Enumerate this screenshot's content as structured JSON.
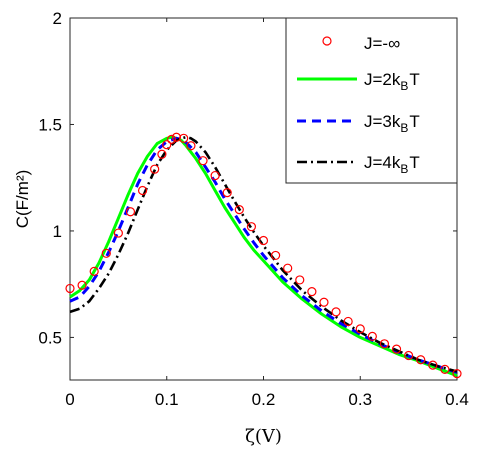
{
  "chart_data": {
    "type": "line",
    "xlabel": "ζ(V)",
    "ylabel": "C(F/m²)",
    "xlim": [
      0,
      0.4
    ],
    "ylim": [
      0.3,
      2.0
    ],
    "xticks": [
      0,
      0.1,
      0.2,
      0.3,
      0.4
    ],
    "xtick_labels": [
      "0",
      "0.1",
      "0.2",
      "0.3",
      "0.4"
    ],
    "yticks": [
      0.5,
      1.0,
      1.5,
      2.0
    ],
    "ytick_labels": [
      "0.5",
      "1",
      "1.5",
      "2"
    ],
    "grid": false,
    "legend_position": "top-right",
    "series": [
      {
        "name": "J=-∞",
        "style": "markers",
        "marker": "circle",
        "color": "#ff0000",
        "x": [
          0,
          0.0125,
          0.025,
          0.0375,
          0.05,
          0.0625,
          0.075,
          0.0875,
          0.095,
          0.1,
          0.105,
          0.11,
          0.1175,
          0.125,
          0.1375,
          0.15,
          0.1625,
          0.175,
          0.1875,
          0.2,
          0.2125,
          0.225,
          0.2375,
          0.25,
          0.2625,
          0.275,
          0.2875,
          0.3,
          0.3125,
          0.325,
          0.3375,
          0.35,
          0.3625,
          0.375,
          0.3875,
          0.4
        ],
        "y": [
          0.73,
          0.745,
          0.81,
          0.895,
          0.99,
          1.09,
          1.19,
          1.29,
          1.36,
          1.405,
          1.43,
          1.44,
          1.435,
          1.4,
          1.33,
          1.26,
          1.18,
          1.1,
          1.02,
          0.955,
          0.885,
          0.825,
          0.77,
          0.715,
          0.665,
          0.62,
          0.575,
          0.54,
          0.505,
          0.47,
          0.445,
          0.415,
          0.395,
          0.37,
          0.35,
          0.33
        ]
      },
      {
        "name": "J=2kBT",
        "label_main": "J=2k",
        "label_sub": "B",
        "label_tail": "T",
        "style": "solid",
        "color": "#00ff00",
        "x": [
          0,
          0.01,
          0.02,
          0.03,
          0.04,
          0.05,
          0.06,
          0.07,
          0.08,
          0.09,
          0.1,
          0.105,
          0.11,
          0.115,
          0.12,
          0.13,
          0.14,
          0.15,
          0.16,
          0.17,
          0.18,
          0.19,
          0.2,
          0.22,
          0.24,
          0.26,
          0.28,
          0.3,
          0.32,
          0.34,
          0.36,
          0.38,
          0.4
        ],
        "y": [
          0.69,
          0.72,
          0.77,
          0.85,
          0.95,
          1.06,
          1.17,
          1.27,
          1.35,
          1.41,
          1.435,
          1.44,
          1.435,
          1.425,
          1.4,
          1.34,
          1.27,
          1.19,
          1.11,
          1.04,
          0.97,
          0.91,
          0.86,
          0.76,
          0.68,
          0.61,
          0.55,
          0.5,
          0.46,
          0.42,
          0.39,
          0.355,
          0.32
        ]
      },
      {
        "name": "J=3kBT",
        "label_main": "J=3k",
        "label_sub": "B",
        "label_tail": "T",
        "style": "dashed",
        "color": "#0000ff",
        "x": [
          0,
          0.01,
          0.02,
          0.03,
          0.04,
          0.05,
          0.06,
          0.07,
          0.08,
          0.09,
          0.1,
          0.11,
          0.115,
          0.12,
          0.13,
          0.14,
          0.15,
          0.16,
          0.17,
          0.18,
          0.19,
          0.2,
          0.22,
          0.24,
          0.26,
          0.28,
          0.3,
          0.32,
          0.34,
          0.36,
          0.38,
          0.4
        ],
        "y": [
          0.67,
          0.69,
          0.74,
          0.81,
          0.9,
          1.0,
          1.11,
          1.22,
          1.31,
          1.38,
          1.42,
          1.435,
          1.43,
          1.415,
          1.37,
          1.3,
          1.23,
          1.15,
          1.08,
          1.01,
          0.945,
          0.885,
          0.78,
          0.695,
          0.625,
          0.565,
          0.515,
          0.47,
          0.43,
          0.395,
          0.365,
          0.335
        ]
      },
      {
        "name": "J=4kBT",
        "label_main": "J=4k",
        "label_sub": "B",
        "label_tail": "T",
        "style": "dashdot",
        "color": "#000000",
        "x": [
          0,
          0.01,
          0.02,
          0.03,
          0.04,
          0.05,
          0.06,
          0.07,
          0.08,
          0.09,
          0.1,
          0.11,
          0.115,
          0.12,
          0.125,
          0.13,
          0.14,
          0.15,
          0.16,
          0.17,
          0.18,
          0.19,
          0.2,
          0.22,
          0.24,
          0.26,
          0.28,
          0.3,
          0.32,
          0.34,
          0.36,
          0.38,
          0.4
        ],
        "y": [
          0.62,
          0.635,
          0.67,
          0.73,
          0.8,
          0.89,
          0.99,
          1.1,
          1.21,
          1.31,
          1.38,
          1.425,
          1.435,
          1.44,
          1.435,
          1.42,
          1.37,
          1.3,
          1.22,
          1.14,
          1.065,
          0.995,
          0.93,
          0.815,
          0.72,
          0.645,
          0.58,
          0.525,
          0.475,
          0.435,
          0.395,
          0.365,
          0.34
        ]
      }
    ]
  }
}
